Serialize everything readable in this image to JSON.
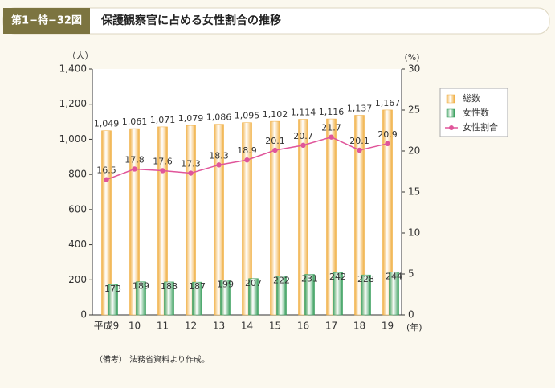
{
  "chart_data": {
    "type": "bar",
    "header_label": "第1−特−32図",
    "title": "保護観察官に占める女性割合の推移",
    "y_unit": "（人）",
    "y2_unit": "(%)",
    "x_unit": "(年)",
    "note": "（備考） 法務省資料より作成。",
    "categories": [
      "平成9",
      "10",
      "11",
      "12",
      "13",
      "14",
      "15",
      "16",
      "17",
      "18",
      "19"
    ],
    "series": [
      {
        "name": "総数",
        "color": "#f0ac3c",
        "type": "bar",
        "values": [
          1049,
          1061,
          1071,
          1079,
          1086,
          1095,
          1102,
          1114,
          1116,
          1137,
          1167
        ],
        "value_labels": [
          "1,049",
          "1,061",
          "1,071",
          "1,079",
          "1,086",
          "1,095",
          "1,102",
          "1,114",
          "1,116",
          "1,137",
          "1,167"
        ]
      },
      {
        "name": "女性数",
        "color": "#2f9a55",
        "type": "bar",
        "values": [
          173,
          189,
          188,
          187,
          199,
          207,
          222,
          231,
          242,
          228,
          244
        ]
      },
      {
        "name": "女性割合",
        "color": "#e0559a",
        "type": "line",
        "axis": "y2",
        "values": [
          16.5,
          17.8,
          17.6,
          17.3,
          18.3,
          18.9,
          20.1,
          20.7,
          21.7,
          20.1,
          20.9
        ]
      }
    ],
    "ylim": [
      0,
      1400
    ],
    "yticks": [
      0,
      200,
      400,
      600,
      800,
      {
        "value": 1000,
        "label": "1,000"
      },
      {
        "value": 1200,
        "label": "1,200"
      },
      {
        "value": 1400,
        "label": "1,400"
      }
    ],
    "y2lim": [
      0,
      30
    ],
    "y2ticks": [
      0,
      5,
      10,
      15,
      20,
      25,
      30
    ]
  }
}
